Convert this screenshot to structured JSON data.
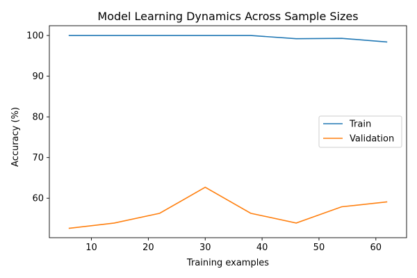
{
  "chart_data": {
    "type": "line",
    "title": "Model Learning Dynamics Across Sample Sizes",
    "xlabel": "Training examples",
    "ylabel": "Accuracy (%)",
    "x": [
      6,
      14,
      22,
      30,
      38,
      46,
      54,
      62
    ],
    "xlim": [
      2.6,
      65.4
    ],
    "ylim": [
      50.3,
      102.4
    ],
    "xticks": [
      10,
      20,
      30,
      40,
      50,
      60
    ],
    "yticks": [
      60,
      70,
      80,
      90,
      100
    ],
    "grid": false,
    "legend": "center-right",
    "series": [
      {
        "name": "Train",
        "color": "#1f77b4",
        "values": [
          100.0,
          100.0,
          100.0,
          100.0,
          100.0,
          99.2,
          99.3,
          98.4
        ]
      },
      {
        "name": "Validation",
        "color": "#ff7f0e",
        "values": [
          52.6,
          53.9,
          56.3,
          62.7,
          56.3,
          53.9,
          57.9,
          59.1
        ]
      }
    ]
  }
}
